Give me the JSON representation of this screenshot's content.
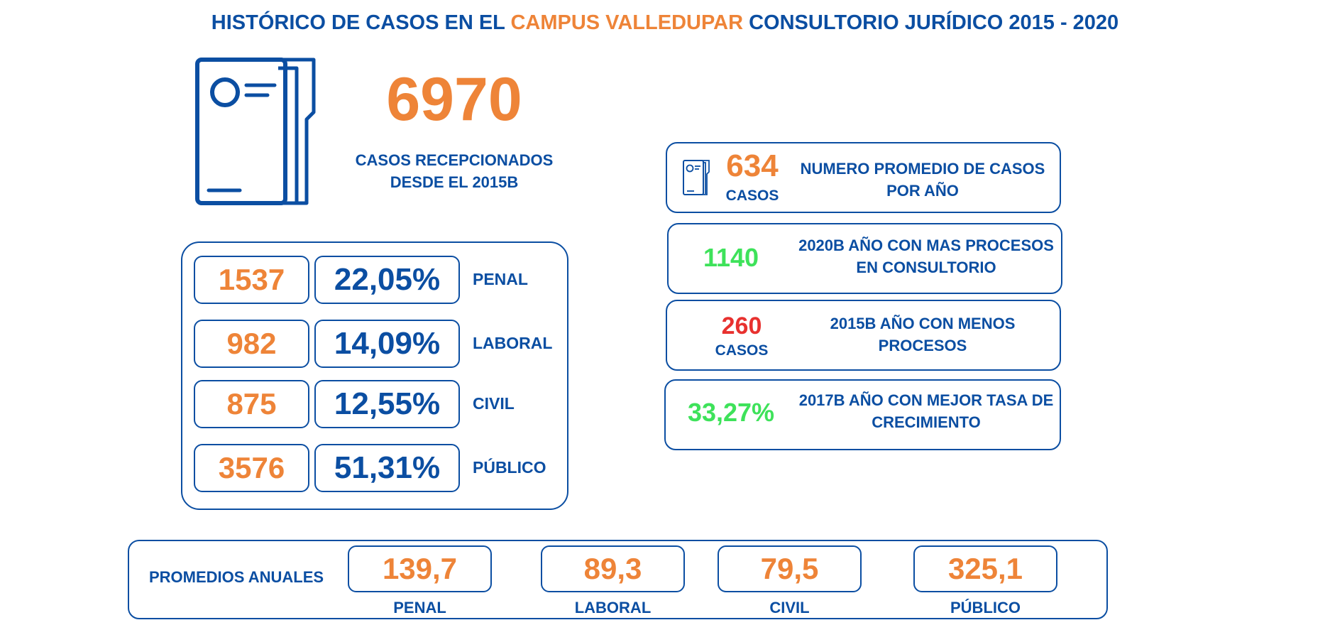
{
  "title": {
    "part1": "HISTÓRICO DE CASOS EN EL ",
    "part2": "CAMPUS VALLEDUPAR",
    "part3": " CONSULTORIO JURÍDICO 2015 - 2020"
  },
  "colors": {
    "blue": "#0b4ea2",
    "orange": "#ee8438",
    "green": "#3ee25a",
    "red": "#e8312f"
  },
  "total": {
    "value": "6970",
    "label_line1": "CASOS RECEPCIONADOS",
    "label_line2": "DESDE EL 2015B",
    "icon": "document-icon"
  },
  "categories": [
    {
      "count": "1537",
      "percent": "22,05%",
      "label": "PENAL"
    },
    {
      "count": "982",
      "percent": "14,09%",
      "label": "LABORAL"
    },
    {
      "count": "875",
      "percent": "12,55%",
      "label": "CIVIL"
    },
    {
      "count": "3576",
      "percent": "51,31%",
      "label": "PÚBLICO"
    }
  ],
  "cards": {
    "average": {
      "value": "634",
      "unit": "CASOS",
      "text_line1": "NUMERO PROMEDIO DE CASOS",
      "text_line2": "POR AÑO",
      "icon": "document-icon"
    },
    "max_year": {
      "value": "1140",
      "text_line1": "2020B AÑO CON MAS PROCESOS",
      "text_line2": "EN CONSULTORIO"
    },
    "min_year": {
      "value": "260",
      "unit": "CASOS",
      "text_line1": "2015B AÑO CON MENOS",
      "text_line2": "PROCESOS"
    },
    "growth": {
      "value": "33,27%",
      "text_line1": "2017B AÑO CON MEJOR TASA DE",
      "text_line2": "CRECIMIENTO"
    }
  },
  "annual_averages": {
    "label": "PROMEDIOS ANUALES",
    "items": [
      {
        "value": "139,7",
        "label": "PENAL"
      },
      {
        "value": "89,3",
        "label": "LABORAL"
      },
      {
        "value": "79,5",
        "label": "CIVIL"
      },
      {
        "value": "325,1",
        "label": "PÚBLICO"
      }
    ]
  }
}
